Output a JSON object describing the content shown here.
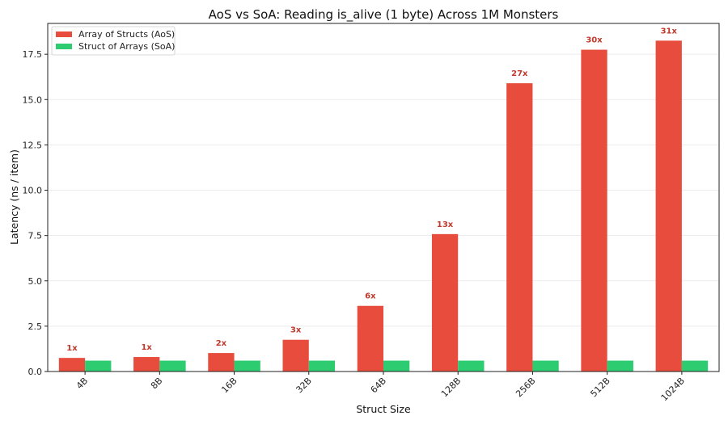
{
  "chart_data": {
    "type": "bar",
    "title": "AoS vs SoA: Reading is_alive (1 byte) Across 1M Monsters",
    "xlabel": "Struct Size",
    "ylabel": "Latency (ns / item)",
    "categories": [
      "4B",
      "8B",
      "16B",
      "32B",
      "64B",
      "128B",
      "256B",
      "512B",
      "1024B"
    ],
    "ylim": [
      0,
      19.2
    ],
    "yticks": [
      "0.0",
      "2.5",
      "5.0",
      "7.5",
      "10.0",
      "12.5",
      "15.0",
      "17.5"
    ],
    "grid": "horizontal",
    "legend_position": "top-left",
    "series": [
      {
        "name": "Array of Structs (AoS)",
        "color": "#e74c3c",
        "values": [
          0.75,
          0.8,
          1.02,
          1.75,
          3.62,
          7.58,
          15.9,
          17.75,
          18.25
        ]
      },
      {
        "name": "Struct of Arrays (SoA)",
        "color": "#2ecc71",
        "values": [
          0.6,
          0.6,
          0.6,
          0.6,
          0.6,
          0.6,
          0.6,
          0.6,
          0.6
        ]
      }
    ],
    "bar_labels": [
      "1x",
      "1x",
      "2x",
      "3x",
      "6x",
      "13x",
      "27x",
      "30x",
      "31x"
    ],
    "bar_label_color": "#c0392b"
  }
}
